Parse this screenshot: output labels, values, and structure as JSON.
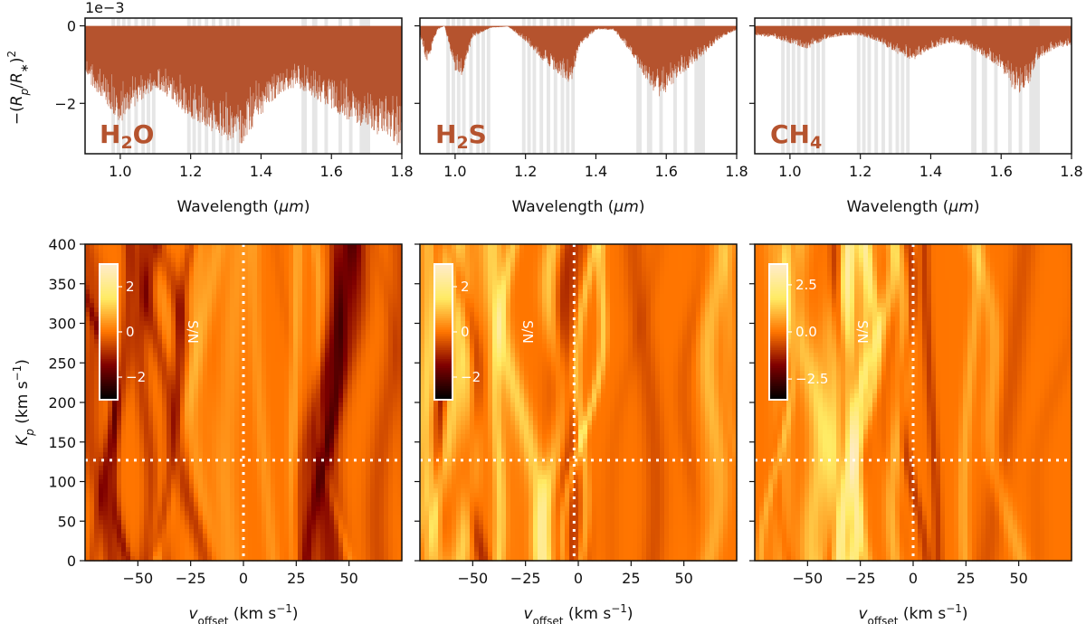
{
  "colors": {
    "spectrum": "#b5532e",
    "band": "#e6e6e6",
    "axis": "#111111",
    "marker": "#ffffff"
  },
  "chart_data": [
    {
      "type": "line",
      "panel": "spectrum",
      "molecule": "H2O",
      "label_main": "H",
      "label_sub": "2",
      "label_end": "O",
      "exponent_label": "1e−3",
      "xlabel_text": "Wavelength (",
      "xlabel_mu": "μm",
      "xlabel_close": ")",
      "ylabel": "−(R_p/R_*)^2",
      "xlim": [
        0.9,
        1.8
      ],
      "ylim": [
        -3.3,
        0.2
      ],
      "xticks": [
        "1.0",
        "1.2",
        "1.4",
        "1.6",
        "1.8"
      ],
      "yticks": [
        "0",
        "−2"
      ],
      "ytick_values": [
        0,
        -2
      ],
      "bands": [
        [
          0.975,
          0.985
        ],
        [
          0.99,
          1.0
        ],
        [
          1.005,
          1.015
        ],
        [
          1.02,
          1.03
        ],
        [
          1.04,
          1.05
        ],
        [
          1.06,
          1.07
        ],
        [
          1.075,
          1.085
        ],
        [
          1.09,
          1.1
        ],
        [
          1.19,
          1.2
        ],
        [
          1.205,
          1.215
        ],
        [
          1.22,
          1.23
        ],
        [
          1.24,
          1.25
        ],
        [
          1.26,
          1.27
        ],
        [
          1.28,
          1.29
        ],
        [
          1.3,
          1.31
        ],
        [
          1.315,
          1.325
        ],
        [
          1.33,
          1.34
        ],
        [
          1.515,
          1.53
        ],
        [
          1.545,
          1.56
        ],
        [
          1.58,
          1.59
        ],
        [
          1.62,
          1.63
        ],
        [
          1.65,
          1.66
        ],
        [
          1.68,
          1.71
        ]
      ],
      "envelope": {
        "x": [
          0.9,
          0.95,
          1.0,
          1.05,
          1.1,
          1.15,
          1.2,
          1.25,
          1.3,
          1.35,
          1.4,
          1.45,
          1.5,
          1.55,
          1.6,
          1.65,
          1.7,
          1.75,
          1.8
        ],
        "min": [
          -1.4,
          -1.9,
          -2.5,
          -2.0,
          -1.6,
          -1.95,
          -2.4,
          -2.7,
          -2.95,
          -3.05,
          -2.3,
          -1.8,
          -1.6,
          -1.85,
          -2.15,
          -2.45,
          -2.65,
          -2.9,
          -3.15
        ]
      }
    },
    {
      "type": "line",
      "panel": "spectrum",
      "molecule": "H2S",
      "label_main": "H",
      "label_sub": "2",
      "label_end": "S",
      "xlabel_text": "Wavelength (",
      "xlabel_mu": "μm",
      "xlabel_close": ")",
      "xlim": [
        0.9,
        1.8
      ],
      "ylim": [
        -3.3,
        0.2
      ],
      "xticks": [
        "1.0",
        "1.2",
        "1.4",
        "1.6",
        "1.8"
      ],
      "bands": [
        [
          0.975,
          0.985
        ],
        [
          0.99,
          1.0
        ],
        [
          1.005,
          1.015
        ],
        [
          1.02,
          1.03
        ],
        [
          1.04,
          1.05
        ],
        [
          1.06,
          1.07
        ],
        [
          1.075,
          1.085
        ],
        [
          1.09,
          1.1
        ],
        [
          1.19,
          1.2
        ],
        [
          1.205,
          1.215
        ],
        [
          1.22,
          1.23
        ],
        [
          1.24,
          1.25
        ],
        [
          1.26,
          1.27
        ],
        [
          1.28,
          1.29
        ],
        [
          1.3,
          1.31
        ],
        [
          1.315,
          1.325
        ],
        [
          1.33,
          1.34
        ],
        [
          1.515,
          1.53
        ],
        [
          1.545,
          1.56
        ],
        [
          1.58,
          1.59
        ],
        [
          1.62,
          1.63
        ],
        [
          1.65,
          1.66
        ],
        [
          1.68,
          1.71
        ]
      ],
      "envelope": {
        "x": [
          0.9,
          0.92,
          0.95,
          0.97,
          1.0,
          1.02,
          1.05,
          1.1,
          1.15,
          1.2,
          1.25,
          1.3,
          1.33,
          1.35,
          1.4,
          1.45,
          1.5,
          1.55,
          1.58,
          1.6,
          1.65,
          1.7,
          1.75,
          1.8
        ],
        "min": [
          -0.2,
          -1.0,
          -0.1,
          0.0,
          -1.2,
          -1.3,
          -0.3,
          -0.05,
          -0.02,
          -0.4,
          -0.9,
          -1.3,
          -1.5,
          -0.6,
          -0.1,
          -0.1,
          -0.7,
          -1.5,
          -1.9,
          -1.7,
          -1.2,
          -0.8,
          -0.35,
          -0.1
        ]
      }
    },
    {
      "type": "line",
      "panel": "spectrum",
      "molecule": "CH4",
      "label_main": "CH",
      "label_sub": "4",
      "label_end": "",
      "xlabel_text": "Wavelength (",
      "xlabel_mu": "μm",
      "xlabel_close": ")",
      "xlim": [
        0.9,
        1.8
      ],
      "ylim": [
        -3.3,
        0.2
      ],
      "xticks": [
        "1.0",
        "1.2",
        "1.4",
        "1.6",
        "1.8"
      ],
      "bands": [
        [
          0.975,
          0.985
        ],
        [
          0.99,
          1.0
        ],
        [
          1.005,
          1.015
        ],
        [
          1.02,
          1.03
        ],
        [
          1.04,
          1.05
        ],
        [
          1.06,
          1.07
        ],
        [
          1.075,
          1.085
        ],
        [
          1.09,
          1.1
        ],
        [
          1.19,
          1.2
        ],
        [
          1.205,
          1.215
        ],
        [
          1.22,
          1.23
        ],
        [
          1.24,
          1.25
        ],
        [
          1.26,
          1.27
        ],
        [
          1.28,
          1.29
        ],
        [
          1.3,
          1.31
        ],
        [
          1.315,
          1.325
        ],
        [
          1.33,
          1.34
        ],
        [
          1.515,
          1.53
        ],
        [
          1.545,
          1.56
        ],
        [
          1.58,
          1.59
        ],
        [
          1.62,
          1.63
        ],
        [
          1.65,
          1.66
        ],
        [
          1.68,
          1.71
        ]
      ],
      "envelope": {
        "x": [
          0.9,
          0.95,
          1.0,
          1.05,
          1.1,
          1.15,
          1.2,
          1.25,
          1.3,
          1.35,
          1.4,
          1.45,
          1.5,
          1.55,
          1.6,
          1.63,
          1.65,
          1.68,
          1.7,
          1.75,
          1.8
        ],
        "min": [
          -0.25,
          -0.3,
          -0.45,
          -0.6,
          -0.35,
          -0.25,
          -0.25,
          -0.4,
          -0.7,
          -0.9,
          -0.6,
          -0.45,
          -0.5,
          -0.8,
          -1.1,
          -1.6,
          -1.8,
          -1.5,
          -0.9,
          -0.6,
          -0.5
        ]
      }
    },
    {
      "type": "heatmap",
      "panel": "kp-map",
      "molecule": "H2O",
      "xlabel_v": "v",
      "xlabel_sub": "offset",
      "xlabel_units": " (km s",
      "xlabel_exp": "−1",
      "xlabel_close": ")",
      "ylabel": "K_p (km s^-1)",
      "xlim": [
        -75,
        75
      ],
      "ylim": [
        0,
        400
      ],
      "xticks": [
        "−50",
        "−25",
        "0",
        "25",
        "50"
      ],
      "xtick_values": [
        -50,
        -25,
        0,
        25,
        50
      ],
      "yticks": [
        "0",
        "50",
        "100",
        "150",
        "200",
        "250",
        "300",
        "350",
        "400"
      ],
      "ytick_values": [
        0,
        50,
        100,
        150,
        200,
        250,
        300,
        350,
        400
      ],
      "marker_v": 0,
      "marker_kp": 127,
      "colorbar": {
        "label": "S/N",
        "range": [
          -3,
          3
        ],
        "ticks": [
          "2",
          "0",
          "−2"
        ],
        "tick_values": [
          2,
          0,
          -2
        ]
      },
      "seed": 11
    },
    {
      "type": "heatmap",
      "panel": "kp-map",
      "molecule": "H2S",
      "xlabel_v": "v",
      "xlabel_sub": "offset",
      "xlabel_units": " (km s",
      "xlabel_exp": "−1",
      "xlabel_close": ")",
      "xlim": [
        -75,
        75
      ],
      "ylim": [
        0,
        400
      ],
      "xticks": [
        "−50",
        "−25",
        "0",
        "25",
        "50"
      ],
      "xtick_values": [
        -50,
        -25,
        0,
        25,
        50
      ],
      "marker_v": -2,
      "marker_kp": 127,
      "colorbar": {
        "label": "S/N",
        "range": [
          -3,
          3
        ],
        "ticks": [
          "2",
          "0",
          "−2"
        ],
        "tick_values": [
          2,
          0,
          -2
        ]
      },
      "seed": 23
    },
    {
      "type": "heatmap",
      "panel": "kp-map",
      "molecule": "CH4",
      "xlabel_v": "v",
      "xlabel_sub": "offset",
      "xlabel_units": " (km s",
      "xlabel_exp": "−1",
      "xlabel_close": ")",
      "xlim": [
        -75,
        75
      ],
      "ylim": [
        0,
        400
      ],
      "xticks": [
        "−50",
        "−25",
        "0",
        "25",
        "50"
      ],
      "xtick_values": [
        -50,
        -25,
        0,
        25,
        50
      ],
      "marker_v": 0,
      "marker_kp": 127,
      "colorbar": {
        "label": "S/N",
        "range": [
          -3.6,
          3.6
        ],
        "ticks": [
          "2.5",
          "0.0",
          "−2.5"
        ],
        "tick_values": [
          2.5,
          0,
          -2.5
        ]
      },
      "seed": 37
    }
  ]
}
